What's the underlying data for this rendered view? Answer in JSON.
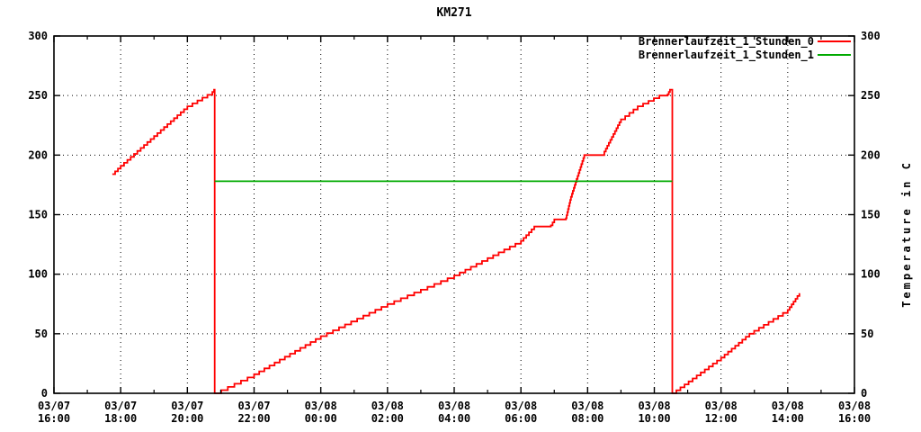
{
  "title": "KM271",
  "colors": {
    "background": "#ffffff",
    "axis": "#000000",
    "grid": "#000000",
    "series_0": "#ff0000",
    "series_1": "#00aa00"
  },
  "chart_data": {
    "type": "line",
    "title": "KM271",
    "y2label": "Temperature in C",
    "xlabel": "",
    "grid": true,
    "legend_position": "top-right-inside",
    "x_unit": "hours since 03/07 16:00",
    "xlim": [
      0,
      24
    ],
    "ylim": [
      0,
      300
    ],
    "y_ticks": [
      0,
      50,
      100,
      150,
      200,
      250,
      300
    ],
    "y_tick_labels": [
      "0",
      "50",
      "100",
      "150",
      "200",
      "250",
      "300"
    ],
    "x_ticks": [
      {
        "h": 0,
        "date": "03/07",
        "time": "16:00"
      },
      {
        "h": 2,
        "date": "03/07",
        "time": "18:00"
      },
      {
        "h": 4,
        "date": "03/07",
        "time": "20:00"
      },
      {
        "h": 6,
        "date": "03/07",
        "time": "22:00"
      },
      {
        "h": 8,
        "date": "03/08",
        "time": "00:00"
      },
      {
        "h": 10,
        "date": "03/08",
        "time": "02:00"
      },
      {
        "h": 12,
        "date": "03/08",
        "time": "04:00"
      },
      {
        "h": 14,
        "date": "03/08",
        "time": "06:00"
      },
      {
        "h": 16,
        "date": "03/08",
        "time": "08:00"
      },
      {
        "h": 18,
        "date": "03/08",
        "time": "10:00"
      },
      {
        "h": 20,
        "date": "03/08",
        "time": "12:00"
      },
      {
        "h": 22,
        "date": "03/08",
        "time": "14:00"
      },
      {
        "h": 24,
        "date": "03/08",
        "time": "16:00"
      }
    ],
    "minor_x_tick_every_hours": 1,
    "series": [
      {
        "name": "Brennerlaufzeit_1_Stunden_0",
        "color": "#ff0000",
        "style": "steps",
        "points": [
          [
            1.75,
            184
          ],
          [
            2.0,
            191
          ],
          [
            4.0,
            241
          ],
          [
            4.75,
            253
          ],
          [
            4.8,
            255
          ],
          [
            4.82,
            0
          ],
          [
            6.0,
            16
          ],
          [
            8.0,
            48
          ],
          [
            10.0,
            75
          ],
          [
            12.0,
            99
          ],
          [
            14.0,
            128
          ],
          [
            14.4,
            140
          ],
          [
            14.9,
            141
          ],
          [
            15.0,
            146
          ],
          [
            15.35,
            147
          ],
          [
            15.5,
            165
          ],
          [
            15.9,
            200
          ],
          [
            16.5,
            203
          ],
          [
            17.0,
            230
          ],
          [
            17.5,
            241
          ],
          [
            18.15,
            250
          ],
          [
            18.4,
            251
          ],
          [
            18.47,
            255
          ],
          [
            18.54,
            0
          ],
          [
            20.0,
            30
          ],
          [
            20.85,
            50
          ],
          [
            22.0,
            70
          ],
          [
            22.35,
            84
          ]
        ]
      },
      {
        "name": "Brennerlaufzeit_1_Stunden_1",
        "color": "#00aa00",
        "style": "line",
        "points": [
          [
            4.82,
            178
          ],
          [
            18.54,
            178
          ]
        ]
      }
    ]
  },
  "legend": {
    "entries": [
      {
        "label": "Brennerlaufzeit_1_Stunden_0",
        "color": "#ff0000"
      },
      {
        "label": "Brennerlaufzeit_1_Stunden_1",
        "color": "#00aa00"
      }
    ]
  }
}
